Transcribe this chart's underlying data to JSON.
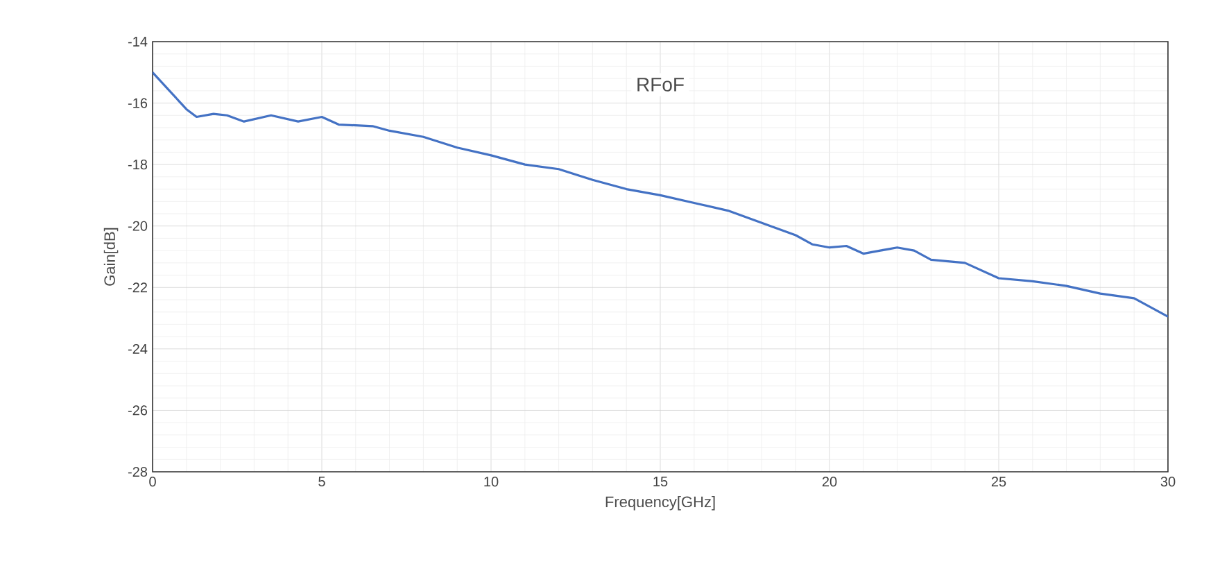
{
  "chart_data": {
    "type": "line",
    "xlabel": "Frequency[GHz]",
    "ylabel": "Gain[dB]",
    "annotations": [
      "RFoF"
    ],
    "xlim": [
      0,
      30
    ],
    "xticks": [
      0,
      5,
      10,
      15,
      20,
      25,
      30
    ],
    "ylim": [
      -28,
      -14
    ],
    "yticks": [
      -28,
      -26,
      -24,
      -22,
      -20,
      -18,
      -16,
      -14
    ],
    "grid": true,
    "series": [
      {
        "color": "#4472c4",
        "x": [
          0,
          0.5,
          1,
          1.3,
          1.8,
          2.2,
          2.7,
          3.5,
          4.3,
          5,
          5.5,
          6.5,
          7,
          8,
          9,
          10,
          11,
          12,
          13,
          14,
          15,
          16,
          17,
          18,
          19,
          19.5,
          20,
          20.5,
          21,
          21.5,
          22,
          22.5,
          23,
          24,
          25,
          26,
          27,
          28,
          29,
          30
        ],
        "values": [
          -15.0,
          -15.6,
          -16.2,
          -16.45,
          -16.35,
          -16.4,
          -16.6,
          -16.4,
          -16.6,
          -16.45,
          -16.7,
          -16.75,
          -16.9,
          -17.1,
          -17.45,
          -17.7,
          -18.0,
          -18.15,
          -18.5,
          -18.8,
          -19.0,
          -19.25,
          -19.5,
          -19.9,
          -20.3,
          -20.6,
          -20.7,
          -20.65,
          -20.9,
          -20.8,
          -20.7,
          -20.8,
          -21.1,
          -21.2,
          -21.7,
          -21.8,
          -21.95,
          -22.2,
          -22.35,
          -22.95
        ]
      }
    ]
  }
}
